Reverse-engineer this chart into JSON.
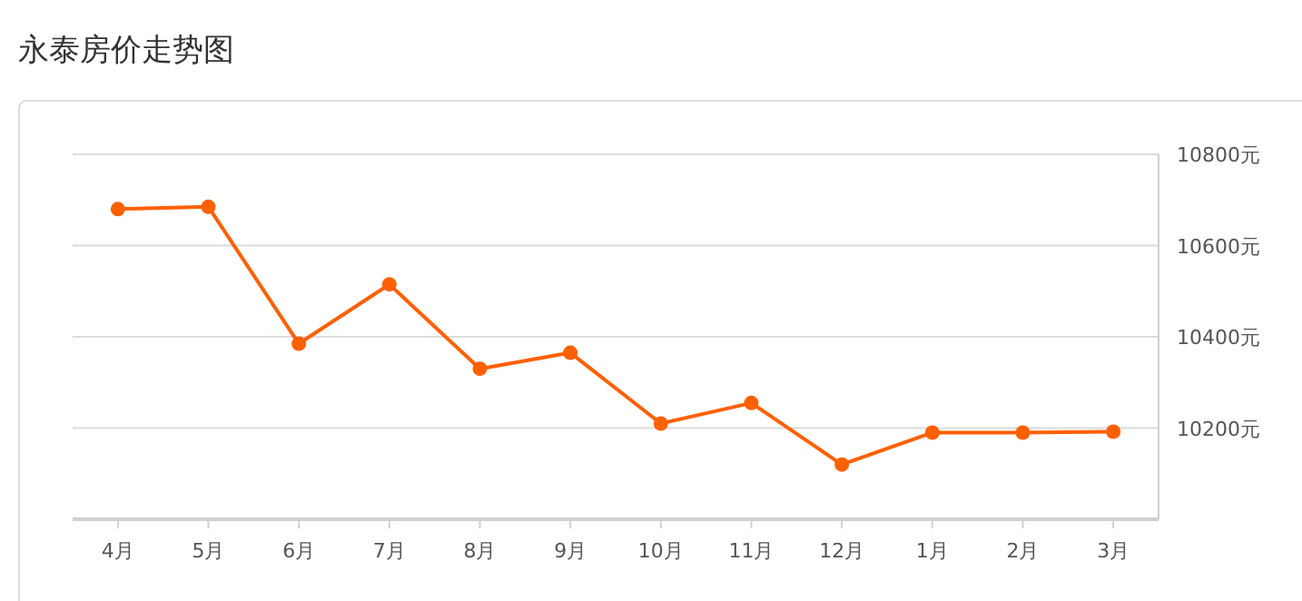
{
  "chart_data": {
    "type": "line",
    "title": "永泰房价走势图",
    "categories": [
      "4月",
      "5月",
      "6月",
      "7月",
      "8月",
      "9月",
      "10月",
      "11月",
      "12月",
      "1月",
      "2月",
      "3月"
    ],
    "series": [
      {
        "color": "#ff6000",
        "values": [
          10680,
          10685,
          10385,
          10515,
          10330,
          10365,
          10210,
          10255,
          10120,
          10190,
          10190,
          10192
        ]
      }
    ],
    "ylim": [
      10000,
      10800
    ],
    "yticks": [
      {
        "value": 10200,
        "label": "10200元"
      },
      {
        "value": 10400,
        "label": "10400元"
      },
      {
        "value": 10600,
        "label": "10600元"
      },
      {
        "value": 10800,
        "label": "10800元"
      }
    ],
    "grid": "y",
    "marker": "circle",
    "line_style": "solid"
  }
}
